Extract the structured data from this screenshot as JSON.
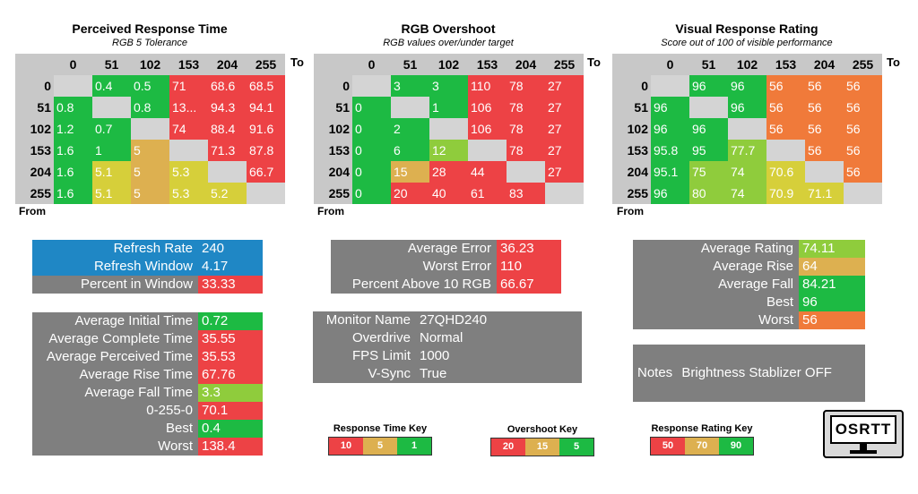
{
  "panels": [
    {
      "title": "Perceived Response Time",
      "subtitle": "RGB 5 Tolerance"
    },
    {
      "title": "RGB Overshoot",
      "subtitle": "RGB values over/under target"
    },
    {
      "title": "Visual Response Rating",
      "subtitle": "Score out of 100 of visible performance"
    }
  ],
  "axis": {
    "to": "To",
    "from": "From"
  },
  "levels": [
    "0",
    "51",
    "102",
    "153",
    "204",
    "255"
  ],
  "matrices": [
    [
      [
        {
          "v": "",
          "c": "diag"
        },
        {
          "v": "0.4",
          "c": "c-g"
        },
        {
          "v": "0.5",
          "c": "c-g"
        },
        {
          "v": "71",
          "c": "c-r"
        },
        {
          "v": "68.6",
          "c": "c-r"
        },
        {
          "v": "68.5",
          "c": "c-r"
        }
      ],
      [
        {
          "v": "0.8",
          "c": "c-g"
        },
        {
          "v": "",
          "c": "diag"
        },
        {
          "v": "0.8",
          "c": "c-g"
        },
        {
          "v": "13...",
          "c": "c-r"
        },
        {
          "v": "94.3",
          "c": "c-r"
        },
        {
          "v": "94.1",
          "c": "c-r"
        }
      ],
      [
        {
          "v": "1.2",
          "c": "c-g"
        },
        {
          "v": "0.7",
          "c": "c-g"
        },
        {
          "v": "",
          "c": "diag"
        },
        {
          "v": "74",
          "c": "c-r"
        },
        {
          "v": "88.4",
          "c": "c-r"
        },
        {
          "v": "91.6",
          "c": "c-r"
        }
      ],
      [
        {
          "v": "1.6",
          "c": "c-g"
        },
        {
          "v": "1",
          "c": "c-g"
        },
        {
          "v": "5",
          "c": "c-o"
        },
        {
          "v": "",
          "c": "diag"
        },
        {
          "v": "71.3",
          "c": "c-r"
        },
        {
          "v": "87.8",
          "c": "c-r"
        }
      ],
      [
        {
          "v": "1.6",
          "c": "c-g"
        },
        {
          "v": "5.1",
          "c": "c-y"
        },
        {
          "v": "5",
          "c": "c-o"
        },
        {
          "v": "5.3",
          "c": "c-y"
        },
        {
          "v": "",
          "c": "diag"
        },
        {
          "v": "66.7",
          "c": "c-r"
        }
      ],
      [
        {
          "v": "1.6",
          "c": "c-g"
        },
        {
          "v": "5.1",
          "c": "c-y"
        },
        {
          "v": "5",
          "c": "c-o"
        },
        {
          "v": "5.3",
          "c": "c-y"
        },
        {
          "v": "5.2",
          "c": "c-y"
        },
        {
          "v": "",
          "c": "diag"
        }
      ]
    ],
    [
      [
        {
          "v": "",
          "c": "diag"
        },
        {
          "v": "3",
          "c": "c-g"
        },
        {
          "v": "3",
          "c": "c-g"
        },
        {
          "v": "110",
          "c": "c-r"
        },
        {
          "v": "78",
          "c": "c-r"
        },
        {
          "v": "27",
          "c": "c-r"
        }
      ],
      [
        {
          "v": "0",
          "c": "c-g"
        },
        {
          "v": "",
          "c": "diag"
        },
        {
          "v": "1",
          "c": "c-g"
        },
        {
          "v": "106",
          "c": "c-r"
        },
        {
          "v": "78",
          "c": "c-r"
        },
        {
          "v": "27",
          "c": "c-r"
        }
      ],
      [
        {
          "v": "0",
          "c": "c-g"
        },
        {
          "v": "2",
          "c": "c-g"
        },
        {
          "v": "",
          "c": "diag"
        },
        {
          "v": "106",
          "c": "c-r"
        },
        {
          "v": "78",
          "c": "c-r"
        },
        {
          "v": "27",
          "c": "c-r"
        }
      ],
      [
        {
          "v": "0",
          "c": "c-g"
        },
        {
          "v": "6",
          "c": "c-g"
        },
        {
          "v": "12",
          "c": "c-lg"
        },
        {
          "v": "",
          "c": "diag"
        },
        {
          "v": "78",
          "c": "c-r"
        },
        {
          "v": "27",
          "c": "c-r"
        }
      ],
      [
        {
          "v": "0",
          "c": "c-g"
        },
        {
          "v": "15",
          "c": "c-o"
        },
        {
          "v": "28",
          "c": "c-r"
        },
        {
          "v": "44",
          "c": "c-r"
        },
        {
          "v": "",
          "c": "diag"
        },
        {
          "v": "27",
          "c": "c-r"
        }
      ],
      [
        {
          "v": "0",
          "c": "c-g"
        },
        {
          "v": "20",
          "c": "c-r"
        },
        {
          "v": "40",
          "c": "c-r"
        },
        {
          "v": "61",
          "c": "c-r"
        },
        {
          "v": "83",
          "c": "c-r"
        },
        {
          "v": "",
          "c": "diag"
        }
      ]
    ],
    [
      [
        {
          "v": "",
          "c": "diag"
        },
        {
          "v": "96",
          "c": "c-g"
        },
        {
          "v": "96",
          "c": "c-g"
        },
        {
          "v": "56",
          "c": "c-or"
        },
        {
          "v": "56",
          "c": "c-or"
        },
        {
          "v": "56",
          "c": "c-or"
        }
      ],
      [
        {
          "v": "96",
          "c": "c-g"
        },
        {
          "v": "",
          "c": "diag"
        },
        {
          "v": "96",
          "c": "c-g"
        },
        {
          "v": "56",
          "c": "c-or"
        },
        {
          "v": "56",
          "c": "c-or"
        },
        {
          "v": "56",
          "c": "c-or"
        }
      ],
      [
        {
          "v": "96",
          "c": "c-g"
        },
        {
          "v": "96",
          "c": "c-g"
        },
        {
          "v": "",
          "c": "diag"
        },
        {
          "v": "56",
          "c": "c-or"
        },
        {
          "v": "56",
          "c": "c-or"
        },
        {
          "v": "56",
          "c": "c-or"
        }
      ],
      [
        {
          "v": "95.8",
          "c": "c-g"
        },
        {
          "v": "95",
          "c": "c-g"
        },
        {
          "v": "77.7",
          "c": "c-lg"
        },
        {
          "v": "",
          "c": "diag"
        },
        {
          "v": "56",
          "c": "c-or"
        },
        {
          "v": "56",
          "c": "c-or"
        }
      ],
      [
        {
          "v": "95.1",
          "c": "c-g"
        },
        {
          "v": "75",
          "c": "c-lg"
        },
        {
          "v": "74",
          "c": "c-lg"
        },
        {
          "v": "70.6",
          "c": "c-y"
        },
        {
          "v": "",
          "c": "diag"
        },
        {
          "v": "56",
          "c": "c-or"
        }
      ],
      [
        {
          "v": "96",
          "c": "c-g"
        },
        {
          "v": "80",
          "c": "c-lg"
        },
        {
          "v": "74",
          "c": "c-lg"
        },
        {
          "v": "70.9",
          "c": "c-y"
        },
        {
          "v": "71.1",
          "c": "c-y"
        },
        {
          "v": "",
          "c": "diag"
        }
      ]
    ]
  ],
  "refresh": [
    {
      "label": "Refresh Rate",
      "value": "240",
      "lc": "bg-blue",
      "vc": "bg-blue"
    },
    {
      "label": "Refresh Window",
      "value": "4.17",
      "lc": "bg-blue",
      "vc": "bg-blue"
    },
    {
      "label": "Percent in Window",
      "value": "33.33",
      "lc": "bg-grey",
      "vc": "c-r"
    }
  ],
  "response_stats": [
    {
      "label": "Average Initial Time",
      "value": "0.72",
      "vc": "c-g"
    },
    {
      "label": "Average Complete Time",
      "value": "35.55",
      "vc": "c-r"
    },
    {
      "label": "Average Perceived Time",
      "value": "35.53",
      "vc": "c-r"
    },
    {
      "label": "Average Rise Time",
      "value": "67.76",
      "vc": "c-r"
    },
    {
      "label": "Average Fall Time",
      "value": "3.3",
      "vc": "c-lg"
    },
    {
      "label": "0-255-0",
      "value": "70.1",
      "vc": "c-r"
    },
    {
      "label": "Best",
      "value": "0.4",
      "vc": "c-g"
    },
    {
      "label": "Worst",
      "value": "138.4",
      "vc": "c-r"
    }
  ],
  "overshoot_stats": [
    {
      "label": "Average Error",
      "value": "36.23",
      "vc": "c-r"
    },
    {
      "label": "Worst Error",
      "value": "110",
      "vc": "c-r"
    },
    {
      "label": "Percent Above 10 RGB",
      "value": "66.67",
      "vc": "c-r"
    }
  ],
  "monitor_info": [
    {
      "label": "Monitor Name",
      "value": "27QHD240"
    },
    {
      "label": "Overdrive",
      "value": "Normal"
    },
    {
      "label": "FPS Limit",
      "value": "1000"
    },
    {
      "label": "V-Sync",
      "value": "True"
    }
  ],
  "rating_stats": [
    {
      "label": "Average Rating",
      "value": "74.11",
      "vc": "c-lg"
    },
    {
      "label": "Average Rise",
      "value": "64",
      "vc": "c-o"
    },
    {
      "label": "Average Fall",
      "value": "84.21",
      "vc": "c-g"
    },
    {
      "label": "Best",
      "value": "96",
      "vc": "c-g"
    },
    {
      "label": "Worst",
      "value": "56",
      "vc": "c-or"
    }
  ],
  "notes": {
    "label": "Notes",
    "value": "Brightness Stablizer OFF"
  },
  "keys": [
    {
      "title": "Response Time Key",
      "cells": [
        {
          "v": "10",
          "c": "c-r"
        },
        {
          "v": "5",
          "c": "c-o"
        },
        {
          "v": "1",
          "c": "c-g"
        }
      ]
    },
    {
      "title": "Overshoot Key",
      "cells": [
        {
          "v": "20",
          "c": "c-r"
        },
        {
          "v": "15",
          "c": "c-o"
        },
        {
          "v": "5",
          "c": "c-g"
        }
      ]
    },
    {
      "title": "Response Rating Key",
      "cells": [
        {
          "v": "50",
          "c": "c-r"
        },
        {
          "v": "70",
          "c": "c-o"
        },
        {
          "v": "90",
          "c": "c-g"
        }
      ]
    }
  ],
  "logo": {
    "text": "OSRTT"
  }
}
